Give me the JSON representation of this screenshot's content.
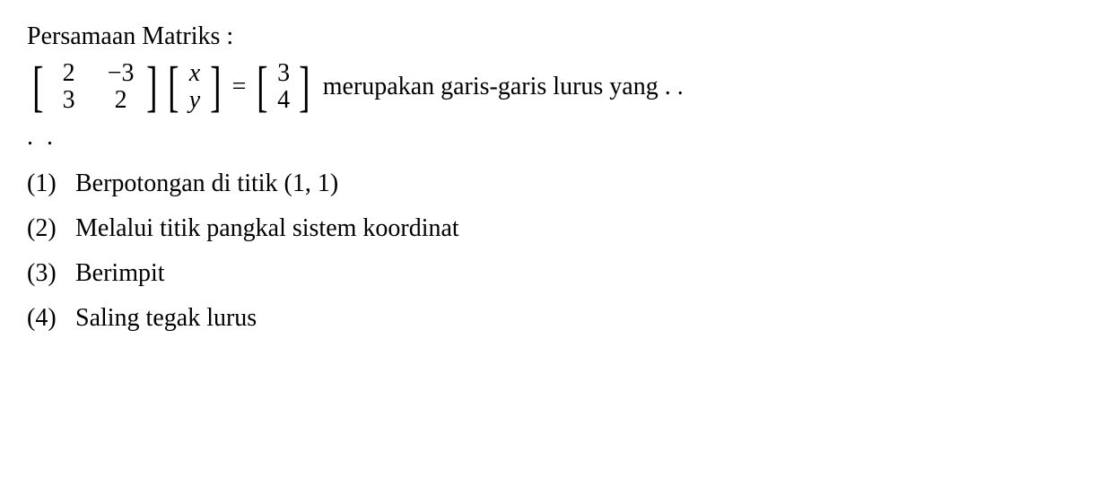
{
  "title": "Persamaan Matriks :",
  "equation": {
    "matrixA": {
      "rows": [
        [
          "2",
          "−3"
        ],
        [
          "3",
          "2"
        ]
      ]
    },
    "matrixX": {
      "rows": [
        [
          "x"
        ],
        [
          "y"
        ]
      ]
    },
    "equals": "=",
    "matrixB": {
      "rows": [
        [
          "3"
        ],
        [
          "4"
        ]
      ]
    },
    "trailing_text": "merupakan garis-garis lurus yang . ."
  },
  "continuation_dots": ". .",
  "options": [
    {
      "num": "(1)",
      "text": "Berpotongan di titik (1, 1)"
    },
    {
      "num": "(2)",
      "text": "Melalui titik pangkal sistem koordinat"
    },
    {
      "num": "(3)",
      "text": "Berimpit"
    },
    {
      "num": "(4)",
      "text": "Saling tegak lurus"
    }
  ],
  "style": {
    "font_family": "Times New Roman",
    "font_size_pt": 21,
    "text_color": "#000000",
    "background_color": "#ffffff"
  }
}
